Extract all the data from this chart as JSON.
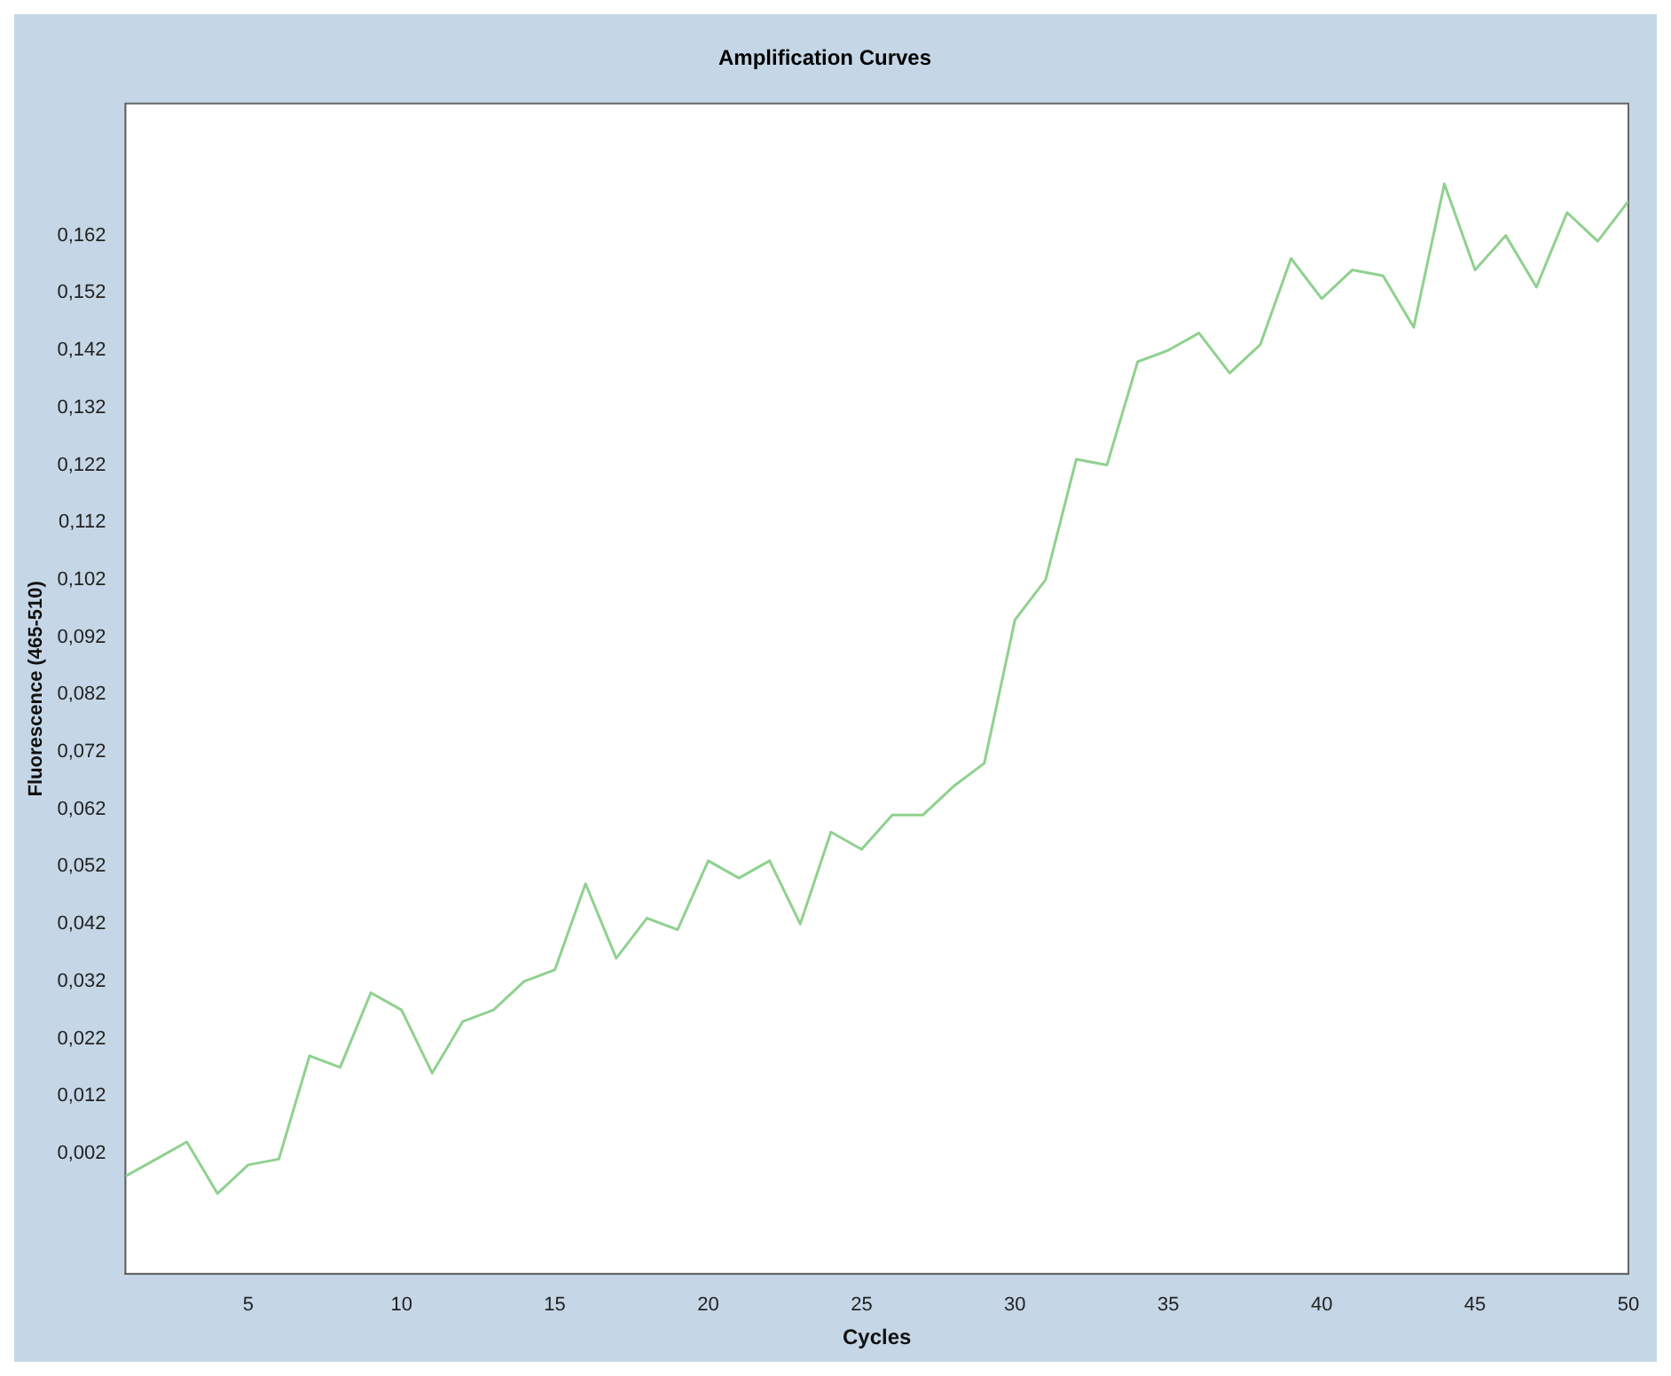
{
  "chart_data": {
    "type": "line",
    "title": "Amplification Curves",
    "xlabel": "Cycles",
    "ylabel": "Fluorescence (465-510)",
    "x": [
      1,
      2,
      3,
      4,
      5,
      6,
      7,
      8,
      9,
      10,
      11,
      12,
      13,
      14,
      15,
      16,
      17,
      18,
      19,
      20,
      21,
      22,
      23,
      24,
      25,
      26,
      27,
      28,
      29,
      30,
      31,
      32,
      33,
      34,
      35,
      36,
      37,
      38,
      39,
      40,
      41,
      42,
      43,
      44,
      45,
      46,
      47,
      48,
      49,
      50
    ],
    "series": [
      {
        "color": "#8fd18f",
        "values": [
          -0.002,
          0.001,
          0.004,
          -0.005,
          0.0,
          0.001,
          0.019,
          0.017,
          0.03,
          0.027,
          0.016,
          0.025,
          0.027,
          0.032,
          0.034,
          0.049,
          0.036,
          0.043,
          0.041,
          0.053,
          0.05,
          0.053,
          0.042,
          0.058,
          0.055,
          0.061,
          0.061,
          0.066,
          0.07,
          0.095,
          0.102,
          0.123,
          0.122,
          0.14,
          0.142,
          0.145,
          0.138,
          0.143,
          0.158,
          0.151,
          0.156,
          0.155,
          0.146,
          0.171,
          0.156,
          0.162,
          0.153,
          0.166,
          0.161,
          0.168
        ]
      }
    ],
    "xlim": [
      1,
      50
    ],
    "xticks": [
      5,
      10,
      15,
      20,
      25,
      30,
      35,
      40,
      45,
      50
    ],
    "ylim": [
      -0.019,
      0.185
    ],
    "yticks": [
      {
        "value": 0.002,
        "label": "0,002"
      },
      {
        "value": 0.012,
        "label": "0,012"
      },
      {
        "value": 0.022,
        "label": "0,022"
      },
      {
        "value": 0.032,
        "label": "0,032"
      },
      {
        "value": 0.042,
        "label": "0,042"
      },
      {
        "value": 0.052,
        "label": "0,052"
      },
      {
        "value": 0.062,
        "label": "0,062"
      },
      {
        "value": 0.072,
        "label": "0,072"
      },
      {
        "value": 0.082,
        "label": "0,082"
      },
      {
        "value": 0.092,
        "label": "0,092"
      },
      {
        "value": 0.102,
        "label": "0,102"
      },
      {
        "value": 0.112,
        "label": "0,112"
      },
      {
        "value": 0.122,
        "label": "0,122"
      },
      {
        "value": 0.132,
        "label": "0,132"
      },
      {
        "value": 0.142,
        "label": "0,142"
      },
      {
        "value": 0.152,
        "label": "0,152"
      },
      {
        "value": 0.162,
        "label": "0,162"
      }
    ],
    "grid": false,
    "legend": false,
    "marker": "none",
    "line_style": "solid"
  }
}
